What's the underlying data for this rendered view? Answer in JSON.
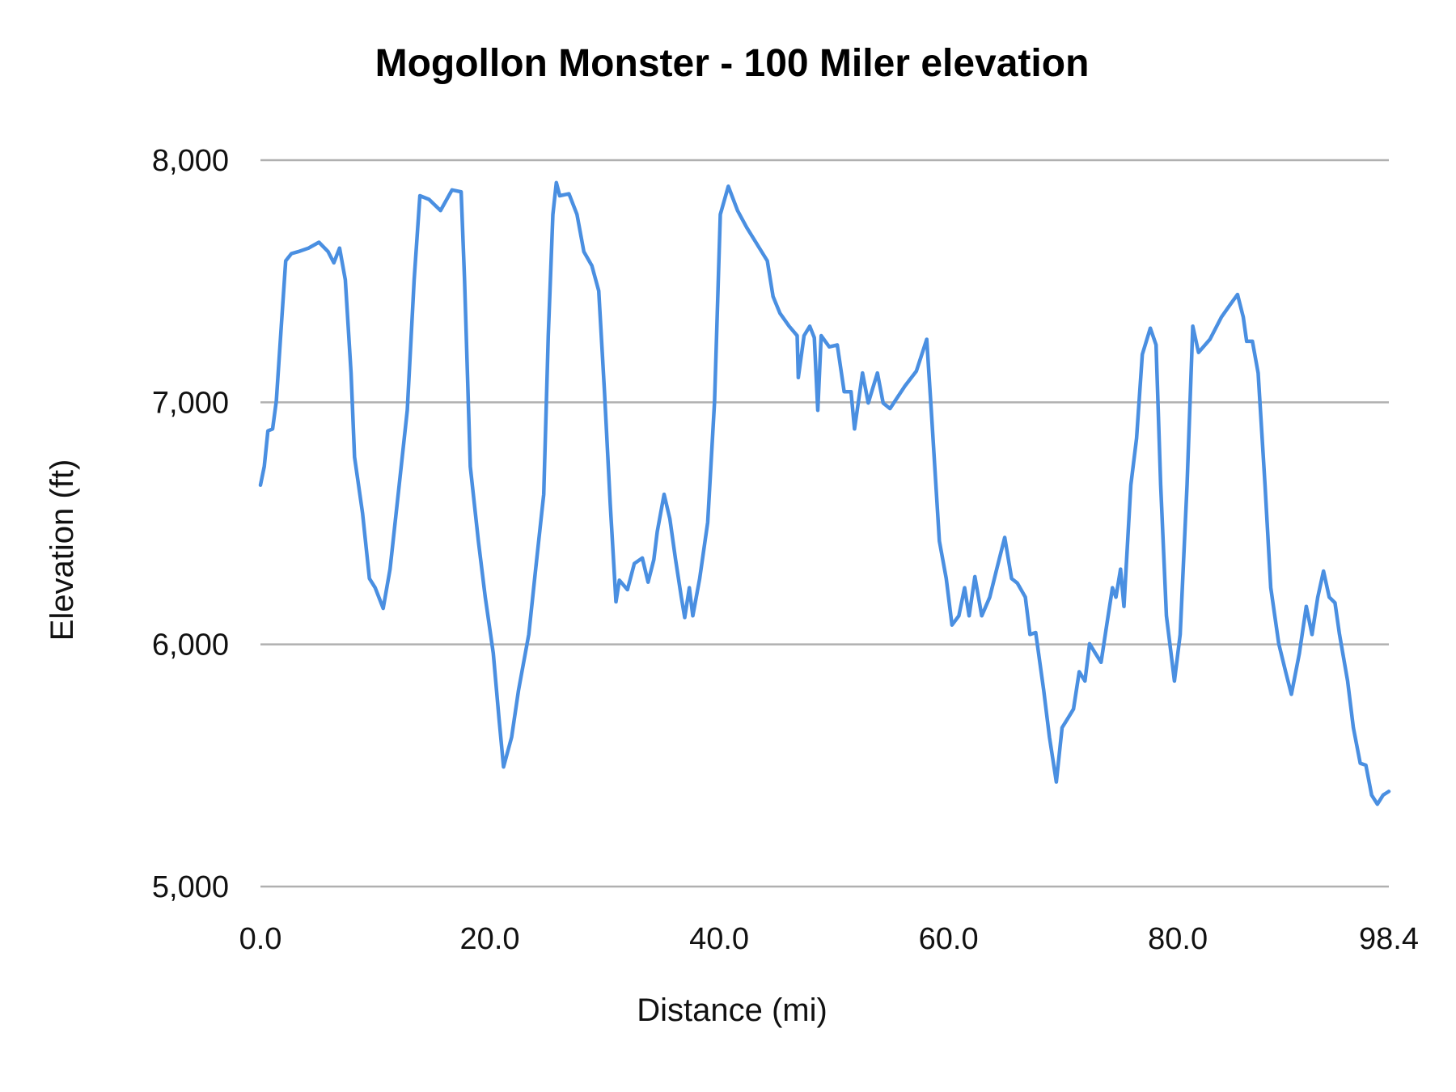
{
  "chart_data": {
    "type": "line",
    "title": "Mogollon Monster - 100 Miler elevation",
    "xlabel": "Distance (mi)",
    "ylabel": "Elevation (ft)",
    "xlim": [
      0,
      98.4
    ],
    "ylim": [
      5000,
      8000
    ],
    "x_tick_labels": [
      "0.0",
      "20.0",
      "40.0",
      "60.0",
      "80.0",
      "98.4"
    ],
    "x_ticks": [
      0,
      20,
      40,
      60,
      80,
      98.4
    ],
    "y_tick_labels": [
      "8,000",
      "7,000",
      "6,000",
      "5,000"
    ],
    "y_ticks": [
      8000,
      7000,
      6000,
      5000
    ],
    "grid": "horizontal",
    "legend": "none",
    "colors": {
      "line": "#4a8fe1",
      "grid": "#b0b0b0"
    },
    "series": [
      {
        "x": [
          0.0,
          0.33,
          0.65,
          1.06,
          1.38,
          1.87,
          2.2,
          2.7,
          3.3,
          4.2,
          5.1,
          5.9,
          6.4,
          6.9,
          7.4,
          7.9,
          8.2,
          8.9,
          9.5,
          10.0,
          10.7,
          11.3,
          12.1,
          12.8,
          13.4,
          13.9,
          14.7,
          15.7,
          16.7,
          17.5,
          17.8,
          18.3,
          19.0,
          19.6,
          20.3,
          20.8,
          21.2,
          21.9,
          22.5,
          23.4,
          24.0,
          24.7,
          25.1,
          25.5,
          25.8,
          26.1,
          26.9,
          27.6,
          28.2,
          28.9,
          29.5,
          30.0,
          30.5,
          31.0,
          31.3,
          32.0,
          32.6,
          33.3,
          33.8,
          34.3,
          34.6,
          35.2,
          35.7,
          36.2,
          36.7,
          37.0,
          37.4,
          37.7,
          38.3,
          39.0,
          39.6,
          40.1,
          40.8,
          41.6,
          42.4,
          43.2,
          44.2,
          44.7,
          45.3,
          46.1,
          46.8,
          46.9,
          47.4,
          47.9,
          48.3,
          48.6,
          48.9,
          49.6,
          50.3,
          50.9,
          51.5,
          51.8,
          52.5,
          53.0,
          53.8,
          54.3,
          54.9,
          56.2,
          57.2,
          58.1,
          58.5,
          59.2,
          59.8,
          60.3,
          60.9,
          61.4,
          61.8,
          62.3,
          62.9,
          63.6,
          64.2,
          64.9,
          65.5,
          66.0,
          66.7,
          67.1,
          67.6,
          68.3,
          68.8,
          69.4,
          69.9,
          70.4,
          70.9,
          71.4,
          71.9,
          72.3,
          72.8,
          73.3,
          73.8,
          74.3,
          74.6,
          75.0,
          75.3,
          75.9,
          76.4,
          76.9,
          77.6,
          78.1,
          78.5,
          79.0,
          79.7,
          80.2,
          80.8,
          81.3,
          81.8,
          82.8,
          83.8,
          84.6,
          85.2,
          85.7,
          86.0,
          86.5,
          87.0,
          87.6,
          88.1,
          88.8,
          89.4,
          89.9,
          90.6,
          91.2,
          91.7,
          92.2,
          92.7,
          93.2,
          93.7,
          94.1,
          94.8,
          95.3,
          95.9,
          96.4,
          96.9,
          97.4,
          97.9,
          98.4
        ],
        "y": [
          6658,
          6735,
          6882,
          6890,
          7005,
          7352,
          7584,
          7614,
          7622,
          7637,
          7661,
          7622,
          7576,
          7637,
          7506,
          7121,
          6774,
          6542,
          6272,
          6234,
          6149,
          6311,
          6658,
          6967,
          7506,
          7853,
          7838,
          7792,
          7877,
          7869,
          7506,
          6735,
          6427,
          6195,
          5964,
          5694,
          5494,
          5617,
          5810,
          6041,
          6311,
          6620,
          7275,
          7776,
          7907,
          7853,
          7861,
          7776,
          7622,
          7564,
          7460,
          7044,
          6581,
          6176,
          6265,
          6226,
          6334,
          6357,
          6257,
          6350,
          6465,
          6620,
          6519,
          6350,
          6195,
          6111,
          6234,
          6118,
          6272,
          6504,
          7005,
          7776,
          7892,
          7792,
          7722,
          7661,
          7584,
          7437,
          7368,
          7314,
          7275,
          7102,
          7275,
          7314,
          7267,
          6967,
          7275,
          7229,
          7237,
          7044,
          7044,
          6890,
          7121,
          6997,
          7121,
          6997,
          6974,
          7067,
          7129,
          7260,
          6967,
          6427,
          6272,
          6080,
          6118,
          6234,
          6118,
          6280,
          6118,
          6195,
          6311,
          6442,
          6272,
          6253,
          6195,
          6041,
          6049,
          5810,
          5617,
          5432,
          5656,
          5694,
          5733,
          5887,
          5849,
          6003,
          5964,
          5926,
          6080,
          6234,
          6195,
          6311,
          6157,
          6658,
          6851,
          7198,
          7306,
          7237,
          6658,
          6118,
          5849,
          6041,
          6658,
          7314,
          7206,
          7260,
          7352,
          7406,
          7445,
          7352,
          7252,
          7252,
          7121,
          6658,
          6234,
          6003,
          5887,
          5794,
          5964,
          6157,
          6041,
          6195,
          6303,
          6195,
          6172,
          6041,
          5849,
          5656,
          5509,
          5501,
          5378,
          5340,
          5378,
          5393
        ]
      }
    ]
  }
}
